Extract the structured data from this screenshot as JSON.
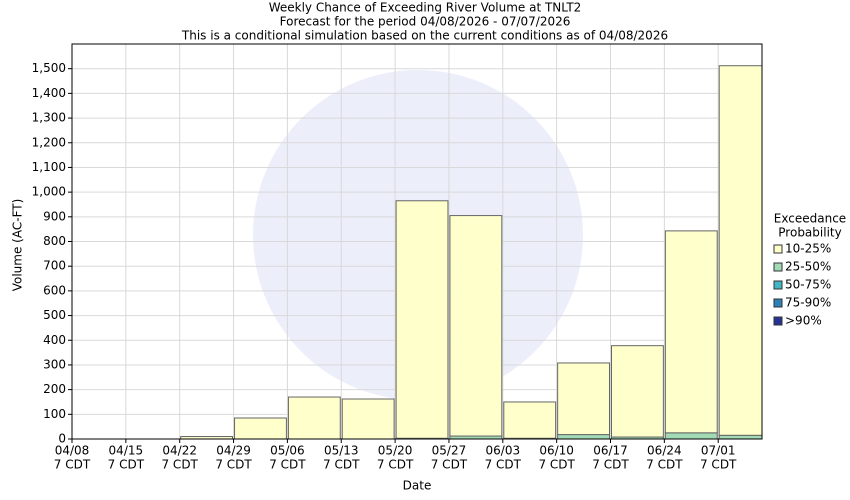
{
  "chart_data": {
    "type": "bar",
    "title": [
      "Weekly Chance of Exceeding River Volume at TNLT2",
      "Forecast for the period 04/08/2026 - 07/07/2026",
      "This is a conditional simulation based on the current conditions as of 04/08/2026"
    ],
    "x_label": "Date",
    "y_label": "Volume (AC-FT)",
    "x_tick_sublabel": "7 CDT",
    "legend_title": [
      "Exceedance",
      "Probability"
    ],
    "categories": [
      "04/08",
      "04/15",
      "04/22",
      "04/29",
      "05/06",
      "05/13",
      "05/20",
      "05/27",
      "06/03",
      "06/10",
      "06/17",
      "06/24",
      "07/01"
    ],
    "series": [
      {
        "name": "10-25%",
        "color": "#ffffcc",
        "values": [
          0,
          0,
          10,
          85,
          170,
          162,
          962,
          893,
          147,
          290,
          370,
          818,
          1497
        ]
      },
      {
        "name": "25-50%",
        "color": "#a1dab4",
        "values": [
          0,
          0,
          0,
          0,
          0,
          0,
          3,
          12,
          3,
          18,
          8,
          25,
          15
        ]
      },
      {
        "name": "50-75%",
        "color": "#41b6c4",
        "values": [
          0,
          0,
          0,
          0,
          0,
          0,
          0,
          0,
          0,
          0,
          0,
          0,
          0
        ]
      },
      {
        "name": "75-90%",
        "color": "#2c7fb8",
        "values": [
          0,
          0,
          0,
          0,
          0,
          0,
          0,
          0,
          0,
          0,
          0,
          0,
          0
        ]
      },
      {
        "name": ">90%",
        "color": "#253494",
        "values": [
          0,
          0,
          0,
          0,
          0,
          0,
          0,
          0,
          0,
          0,
          0,
          0,
          0
        ]
      }
    ],
    "ylim": [
      0,
      1600
    ],
    "yticks": [
      0,
      100,
      200,
      300,
      400,
      500,
      600,
      700,
      800,
      900,
      {
        "value": 1000,
        "label": "1,000"
      },
      {
        "value": 1100,
        "label": "1,100"
      },
      {
        "value": 1200,
        "label": "1,200"
      },
      {
        "value": 1300,
        "label": "1,300"
      },
      {
        "value": 1400,
        "label": "1,400"
      },
      {
        "value": 1500,
        "label": "1,500"
      }
    ],
    "grid": true
  }
}
